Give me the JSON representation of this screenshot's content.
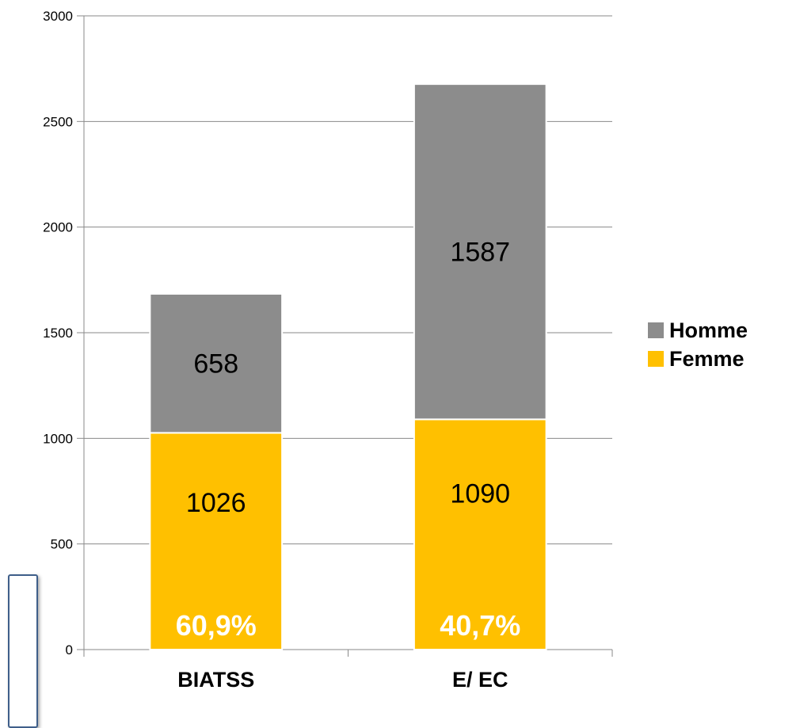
{
  "chart_data": {
    "type": "bar",
    "stacked": true,
    "categories": [
      "BIATSS",
      "E/ EC"
    ],
    "series": [
      {
        "name": "Femme",
        "values": [
          1026,
          1090
        ],
        "color": "#FFC000",
        "percent_labels": [
          "60,9%",
          "40,7%"
        ]
      },
      {
        "name": "Homme",
        "values": [
          658,
          1587
        ],
        "color": "#8C8C8C"
      }
    ],
    "ylim": [
      0,
      3000
    ],
    "yticks": [
      "0",
      "500",
      "1000",
      "1500",
      "2000",
      "2500",
      "3000"
    ],
    "grid": true,
    "legend_position": "right"
  }
}
